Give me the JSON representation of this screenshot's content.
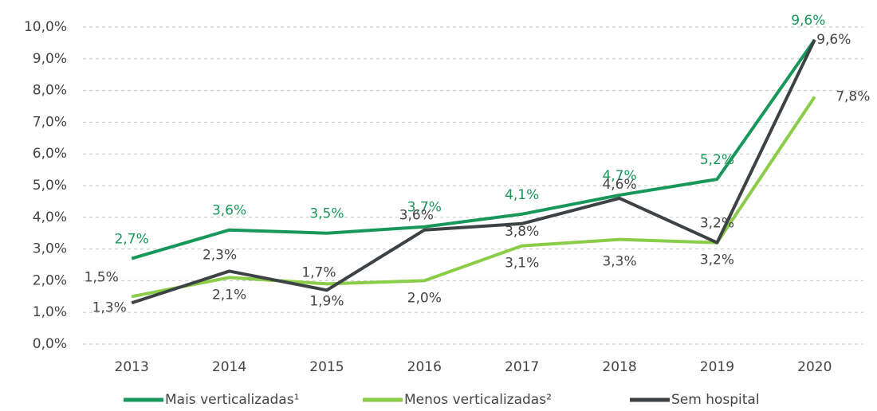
{
  "chart_data": {
    "type": "line",
    "categories": [
      "2013",
      "2014",
      "2015",
      "2016",
      "2017",
      "2018",
      "2019",
      "2020"
    ],
    "series": [
      {
        "name": "Mais verticalizadas¹",
        "color": "#17985a",
        "values": [
          2.7,
          3.6,
          3.5,
          3.7,
          4.1,
          4.7,
          5.2,
          9.6
        ],
        "value_labels": [
          "2,7%",
          "3,6%",
          "3,5%",
          "3,7%",
          "4,1%",
          "4,7%",
          "5,2%",
          "9,6%"
        ]
      },
      {
        "name": "Menos verticalizadas²",
        "color": "#8acd48",
        "values": [
          1.5,
          2.1,
          1.9,
          2.0,
          3.1,
          3.3,
          3.2,
          7.8
        ],
        "value_labels": [
          "1,5%",
          "2,1%",
          "1,9%",
          "2,0%",
          "3,1%",
          "3,3%",
          "3,2%",
          "7,8%"
        ]
      },
      {
        "name": "Sem hospital",
        "color": "#3d4245",
        "values": [
          1.3,
          2.3,
          1.7,
          3.6,
          3.8,
          4.6,
          3.2,
          9.6
        ],
        "value_labels": [
          "1,3%",
          "2,3%",
          "1,7%",
          "3,6%",
          "3,8%",
          "4,6%",
          "3,2%",
          "9,6%"
        ]
      }
    ],
    "ylim": [
      0,
      10
    ],
    "yticks": [
      {
        "value": 0,
        "label": "0,0%"
      },
      {
        "value": 1,
        "label": "1,0%"
      },
      {
        "value": 2,
        "label": "2,0%"
      },
      {
        "value": 3,
        "label": "3,0%"
      },
      {
        "value": 4,
        "label": "4,0%"
      },
      {
        "value": 5,
        "label": "5,0%"
      },
      {
        "value": 6,
        "label": "6,0%"
      },
      {
        "value": 7,
        "label": "7,0%"
      },
      {
        "value": 8,
        "label": "8,0%"
      },
      {
        "value": 9,
        "label": "9,0%"
      },
      {
        "value": 10,
        "label": "10,0%"
      }
    ],
    "grid": true,
    "legend": "bottom"
  }
}
